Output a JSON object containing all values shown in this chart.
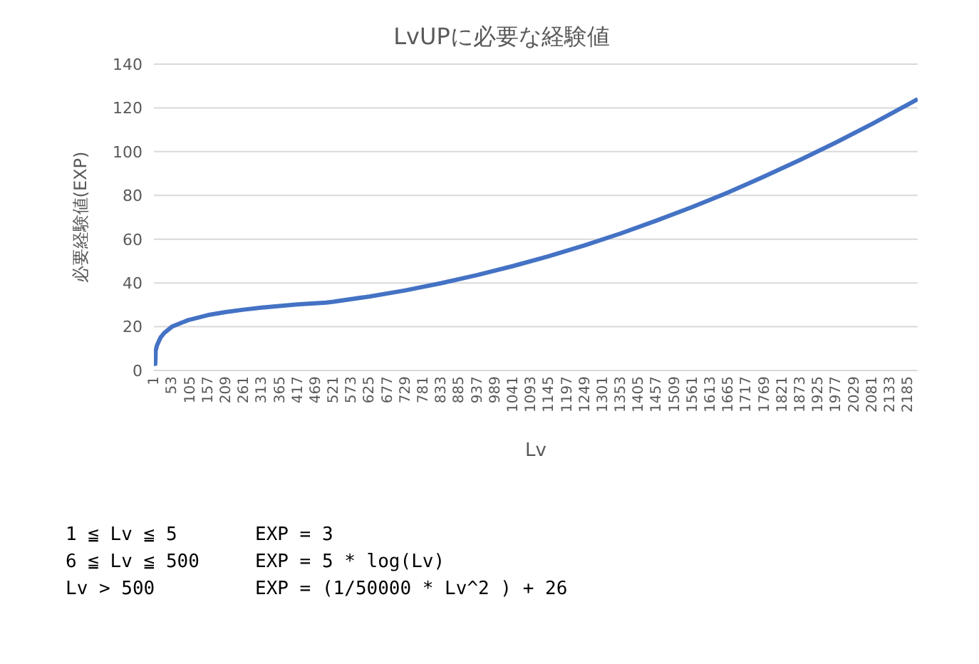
{
  "chart_data": {
    "type": "line",
    "title": "LvUPに必要な経験値",
    "xlabel": "Lv",
    "ylabel": "必要経験値(EXP)",
    "x": [
      1,
      5,
      6,
      10,
      20,
      30,
      53,
      100,
      157,
      209,
      261,
      313,
      365,
      417,
      500,
      521,
      625,
      729,
      833,
      937,
      1041,
      1145,
      1249,
      1353,
      1457,
      1561,
      1665,
      1769,
      1873,
      1977,
      2081,
      2185,
      2214
    ],
    "series": [
      {
        "color": "#4472c4",
        "values": [
          3,
          3,
          9,
          11.5,
          15,
          17,
          20,
          23,
          25.3,
          26.7,
          27.8,
          28.7,
          29.5,
          30.2,
          31,
          31.4,
          33.8,
          36.6,
          39.9,
          43.6,
          47.7,
          52.2,
          57.2,
          62.6,
          68.5,
          74.7,
          81.4,
          88.6,
          96.2,
          104.2,
          112.6,
          121.5,
          124
        ]
      }
    ],
    "xlim": [
      1,
      2214
    ],
    "xticks": [
      1,
      53,
      105,
      157,
      209,
      261,
      313,
      365,
      417,
      469,
      521,
      573,
      625,
      677,
      729,
      781,
      833,
      885,
      937,
      989,
      1041,
      1093,
      1145,
      1197,
      1249,
      1301,
      1353,
      1405,
      1457,
      1509,
      1561,
      1613,
      1665,
      1717,
      1769,
      1821,
      1873,
      1925,
      1977,
      2029,
      2081,
      2133,
      2185
    ],
    "ylim": [
      0,
      140
    ],
    "yticks": [
      0,
      20,
      40,
      60,
      80,
      100,
      120,
      140
    ],
    "grid": "y",
    "marker": "none",
    "line_style": "solid",
    "annotations": [
      "1 ≦ Lv ≦ 5",
      "EXP = 3",
      "6 ≦ Lv ≦ 500",
      "EXP = 5 * log(Lv)",
      "Lv > 500",
      "EXP = (1/50000 * Lv^2 ) + 26"
    ]
  }
}
